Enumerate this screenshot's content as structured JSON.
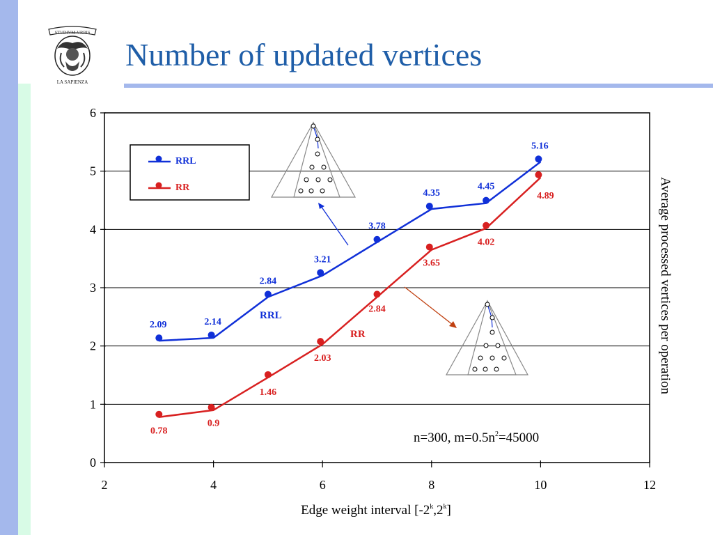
{
  "slide": {
    "title": "Number of updated vertices",
    "logo": {
      "motto": "STVDIVM·VRBIS",
      "caption": "LA SAPIENZA"
    },
    "accent_color": "#1f5ea8"
  },
  "chart_data": {
    "type": "line",
    "xlabel": "Edge weight interval [-2^k,2^k]",
    "xlabel_parts": {
      "text": "Edge weight interval [-2",
      "sup1": "k",
      "mid": ",2",
      "sup2": "k",
      "end": "]"
    },
    "ylabel": "Average processed vertices per operation",
    "xlim": [
      2,
      12
    ],
    "ylim": [
      0,
      6
    ],
    "xticks": [
      2,
      4,
      6,
      8,
      10,
      12
    ],
    "yticks": [
      0,
      1,
      2,
      3,
      4,
      5,
      6
    ],
    "grid": "horizontal",
    "legend": {
      "placement": "top-left",
      "entries": [
        "RRL",
        "RR"
      ]
    },
    "annotation": {
      "text": "n=300, m=0.5n",
      "sup": "2",
      "end": "=45000"
    },
    "series": [
      {
        "name": "RRL",
        "color": "#1030d8",
        "x": [
          3,
          4,
          5,
          6,
          7,
          8,
          9,
          10
        ],
        "values": [
          2.09,
          2.14,
          2.84,
          3.21,
          3.78,
          4.35,
          4.45,
          5.16
        ],
        "labels": [
          "2.09",
          "2.14",
          "2.84",
          "3.21",
          "3.78",
          "4.35",
          "4.45",
          "5.16"
        ],
        "inline_label": "RRL"
      },
      {
        "name": "RR",
        "color": "#d82020",
        "x": [
          3,
          4,
          5,
          6,
          7,
          8,
          9,
          10
        ],
        "values": [
          0.78,
          0.9,
          1.46,
          2.03,
          2.84,
          3.65,
          4.02,
          4.89
        ],
        "labels": [
          "0.78",
          "0.9",
          "1.46",
          "2.03",
          "2.84",
          "3.65",
          "4.02",
          "4.89"
        ],
        "inline_label": "RR"
      }
    ]
  }
}
